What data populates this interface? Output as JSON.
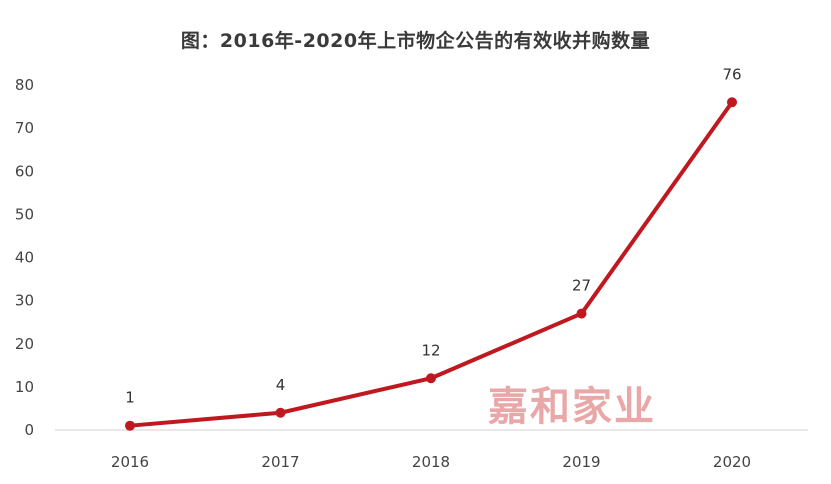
{
  "chart_data": {
    "type": "line",
    "title": "图：2016年-2020年上市物企公告的有效收并购数量",
    "xlabel": "",
    "ylabel": "",
    "categories": [
      "2016",
      "2017",
      "2018",
      "2019",
      "2020"
    ],
    "series": [
      {
        "values": [
          1,
          4,
          12,
          27,
          76
        ],
        "color": "#c0181f"
      }
    ],
    "data_labels": [
      "1",
      "4",
      "12",
      "27",
      "76"
    ],
    "ylim": [
      0,
      80
    ],
    "yticks": [
      "0",
      "10",
      "20",
      "30",
      "40",
      "50",
      "60",
      "70",
      "80"
    ],
    "grid": false,
    "legend": "none"
  },
  "watermark": {
    "text": "嘉和家业",
    "color": "#e9a7a7"
  }
}
